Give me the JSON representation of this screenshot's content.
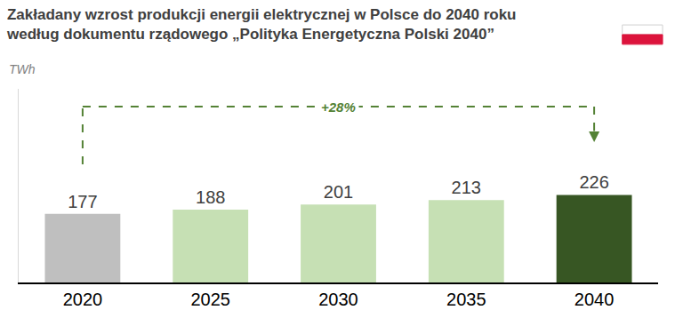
{
  "chart_data": {
    "type": "bar",
    "title": "Zakładany wzrost produkcji energii elektrycznej w Polsce do 2040 roku\nwedług dokumentu rządowego „Polityka Energetyczna Polski 2040”",
    "subtitle": "TWh",
    "categories": [
      "2020",
      "2025",
      "2030",
      "2035",
      "2040"
    ],
    "values": [
      177,
      188,
      201,
      213,
      226
    ],
    "colors": [
      "#bfbfbf",
      "#c6e0b4",
      "#c6e0b4",
      "#c6e0b4",
      "#375623"
    ],
    "ylim": [
      0,
      500
    ],
    "grid": false,
    "data_labels": true,
    "tick_labels": "x",
    "annotation": "+28%"
  }
}
